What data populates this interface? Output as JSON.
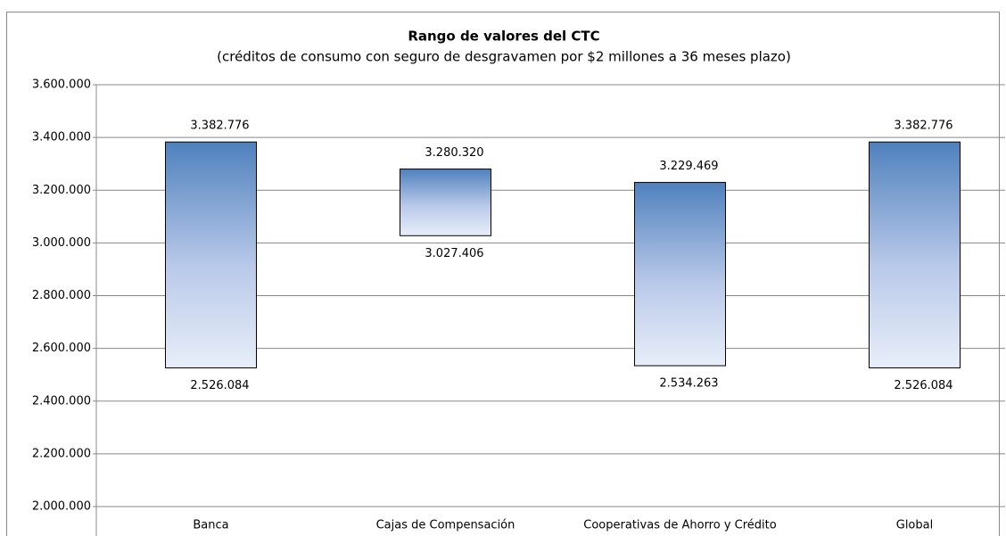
{
  "chart_data": {
    "type": "range-bar",
    "title": "Rango de valores del CTC",
    "subtitle": "(créditos de consumo con seguro de desgravamen por $2 millones a 36 meses plazo)",
    "categories": [
      "Banca",
      "Cajas de Compensación",
      "Cooperativas de Ahorro y Crédito",
      "Global"
    ],
    "series": [
      {
        "values": [
          2526084,
          3027406,
          2534263,
          2526084
        ],
        "value_labels": [
          "2.526.084",
          "3.027.406",
          "2.534.263",
          "2.526.084"
        ]
      },
      {
        "values": [
          3382776,
          3280320,
          3229469,
          3382776
        ],
        "value_labels": [
          "3.382.776",
          "3.280.320",
          "3.229.469",
          "3.382.776"
        ]
      }
    ],
    "color": "#4f81bd",
    "ylim": [
      2000000,
      3600000
    ],
    "yticks": [
      {
        "value": 2000000,
        "label": "2.000.000"
      },
      {
        "value": 2200000,
        "label": "2.200.000"
      },
      {
        "value": 2400000,
        "label": "2.400.000"
      },
      {
        "value": 2600000,
        "label": "2.600.000"
      },
      {
        "value": 2800000,
        "label": "2.800.000"
      },
      {
        "value": 3000000,
        "label": "3.000.000"
      },
      {
        "value": 3200000,
        "label": "3.200.000"
      },
      {
        "value": 3400000,
        "label": "3.400.000"
      },
      {
        "value": 3600000,
        "label": "3.600.000"
      }
    ],
    "grid": true
  }
}
